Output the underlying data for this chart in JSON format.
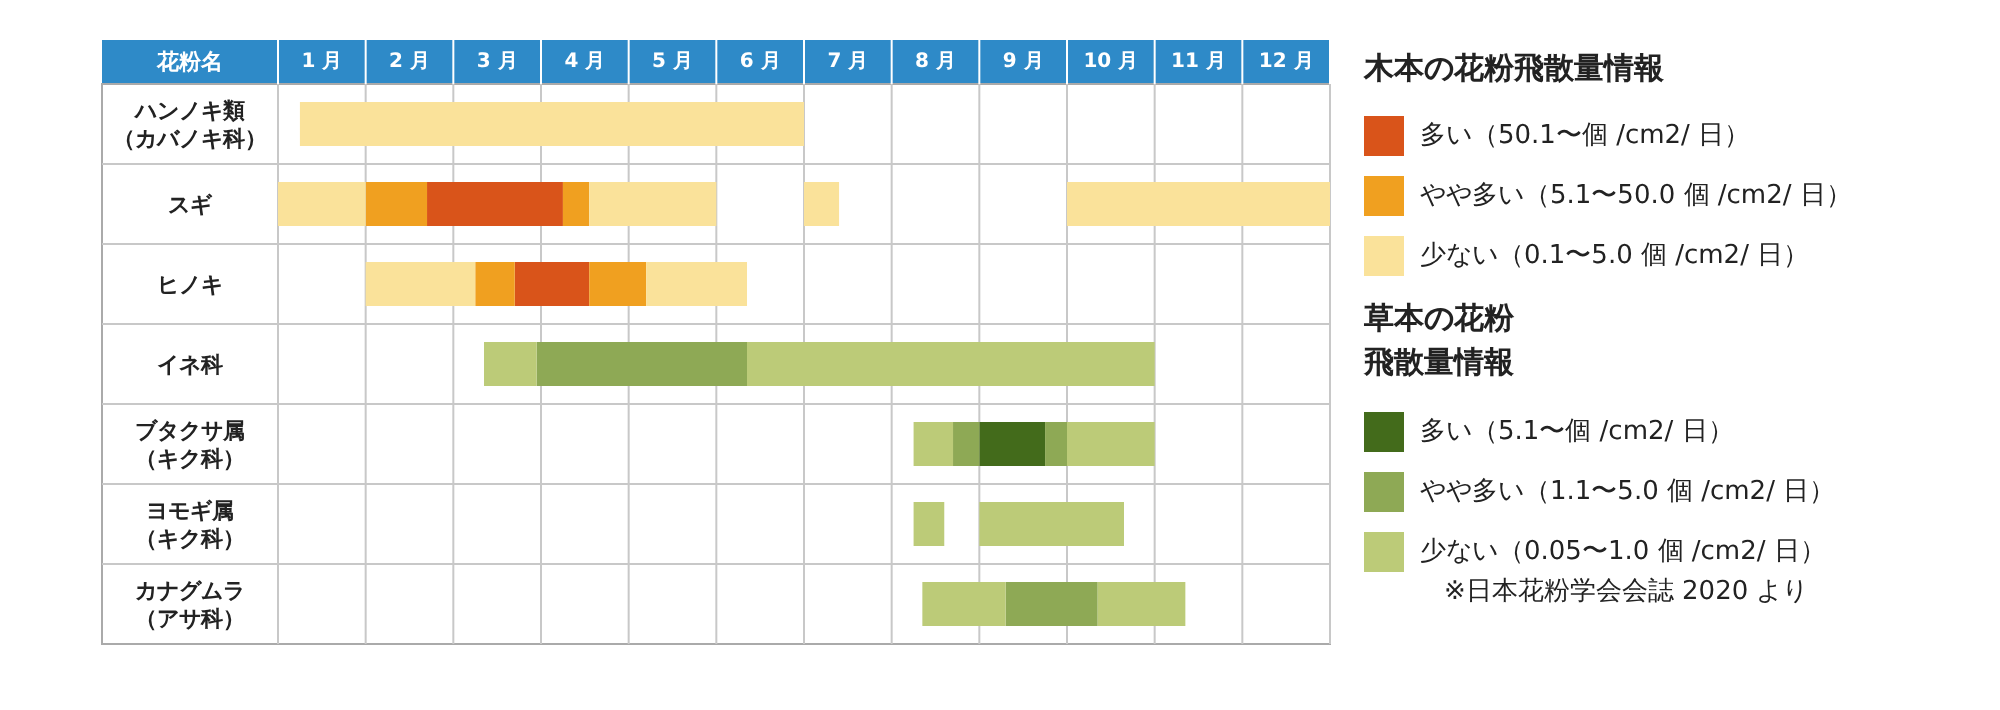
{
  "chart_data": {
    "type": "bar",
    "orientation": "horizontal",
    "ylabel": "花粉名",
    "categories": [
      "ハンノキ類（カバノキ科）",
      "スギ",
      "ヒノキ",
      "イネ科",
      "ブタクサ属（キク科）",
      "ヨモギ属（キク科）",
      "カナグムラ（アサ科）"
    ],
    "xlim": [
      0,
      12
    ],
    "xticks": [
      {
        "value": 0,
        "label": null
      },
      {
        "value": 0.5,
        "label": "1 月"
      },
      {
        "value": 1,
        "label": null
      },
      {
        "value": 1.5,
        "label": "2 月"
      },
      {
        "value": 2,
        "label": null
      },
      {
        "value": 2.5,
        "label": "3 月"
      },
      {
        "value": 3,
        "label": null
      },
      {
        "value": 3.5,
        "label": "4 月"
      },
      {
        "value": 4,
        "label": null
      },
      {
        "value": 4.5,
        "label": "5 月"
      },
      {
        "value": 5,
        "label": null
      },
      {
        "value": 5.5,
        "label": "6 月"
      },
      {
        "value": 6,
        "label": null
      },
      {
        "value": 6.5,
        "label": "7 月"
      },
      {
        "value": 7,
        "label": null
      },
      {
        "value": 7.5,
        "label": "8 月"
      },
      {
        "value": 8,
        "label": null
      },
      {
        "value": 8.5,
        "label": "9 月"
      },
      {
        "value": 9,
        "label": null
      },
      {
        "value": 9.5,
        "label": "10 月"
      },
      {
        "value": 10,
        "label": null
      },
      {
        "value": 10.5,
        "label": "11 月"
      },
      {
        "value": 11,
        "label": null
      },
      {
        "value": 11.5,
        "label": "12 月"
      },
      {
        "value": 12,
        "label": null
      }
    ],
    "grid": true,
    "legend": "right",
    "legend_title": "木本の花粉飛散量情報",
    "annotations": [
      "草本の花粉飛散量情報",
      "※日本花粉学会会誌 2020 より"
    ],
    "series": [
      {
        "name": "多い（50.1〜個 /cm2/ 日）",
        "color": "#d9541a",
        "base": [
          null,
          1.7,
          2.7,
          null,
          null,
          null,
          null
        ],
        "values": [
          null,
          1.55,
          0.85,
          null,
          null,
          null,
          null
        ]
      },
      {
        "name": "やや多い（5.1〜50.0 個 /cm2/ 日）",
        "color": "#f0a020",
        "base": [
          null,
          1.0,
          2.25,
          null,
          null,
          null,
          null
        ],
        "values": [
          null,
          0.7,
          0.45,
          null,
          null,
          null,
          null
        ]
      },
      {
        "name": "少ない（0.1〜5.0 個 /cm2/ 日）",
        "color": "#fae29a",
        "base": [
          0.25,
          0,
          1.0,
          null,
          null,
          null,
          null
        ],
        "values": [
          5.75,
          1.0,
          1.25,
          null,
          null,
          null,
          null
        ]
      },
      {
        "name": "多い（5.1〜個 /cm2/ 日）",
        "color": "#436b1b",
        "base": [
          null,
          null,
          null,
          null,
          8.0,
          null,
          null
        ],
        "values": [
          null,
          null,
          null,
          null,
          0.75,
          null,
          null
        ]
      },
      {
        "name": "やや多い（1.1〜5.0 個 /cm2/ 日）",
        "color": "#8ea955",
        "base": [
          null,
          null,
          null,
          2.95,
          7.7,
          null,
          8.3
        ],
        "values": [
          null,
          null,
          null,
          2.4,
          0.3,
          null,
          1.05
        ]
      },
      {
        "name": "少ない（0.05〜1.0 個 /cm2/ 日）",
        "color": "#bccb78",
        "base": [
          null,
          null,
          null,
          2.35,
          7.25,
          7.25,
          7.35
        ],
        "values": [
          null,
          null,
          null,
          0.6,
          0.45,
          0.35,
          0.95
        ]
      },
      {
        "color": "#f0a020",
        "base": [
          null,
          3.25,
          3.55,
          null,
          null,
          null,
          null
        ],
        "values": [
          null,
          0.3,
          0.65,
          null,
          null,
          null,
          null
        ]
      },
      {
        "color": "#fae29a",
        "base": [
          null,
          3.55,
          4.2,
          null,
          null,
          null,
          null
        ],
        "values": [
          null,
          1.45,
          1.15,
          null,
          null,
          null,
          null
        ]
      },
      {
        "color": "#fae29a",
        "base": [
          null,
          6.0,
          null,
          null,
          null,
          null,
          null
        ],
        "values": [
          null,
          0.4,
          null,
          null,
          null,
          null,
          null
        ]
      },
      {
        "color": "#fae29a",
        "base": [
          null,
          9.0,
          null,
          null,
          null,
          null,
          null
        ],
        "values": [
          null,
          3.0,
          null,
          null,
          null,
          null,
          null
        ]
      },
      {
        "color": "#8ea955",
        "base": [
          null,
          null,
          null,
          null,
          8.75,
          null,
          null
        ],
        "values": [
          null,
          null,
          null,
          null,
          0.25,
          null,
          null
        ]
      },
      {
        "color": "#bccb78",
        "base": [
          null,
          null,
          null,
          5.35,
          9.0,
          8.0,
          9.35
        ],
        "values": [
          null,
          null,
          null,
          4.65,
          1.0,
          1.65,
          1.0
        ]
      }
    ]
  }
}
